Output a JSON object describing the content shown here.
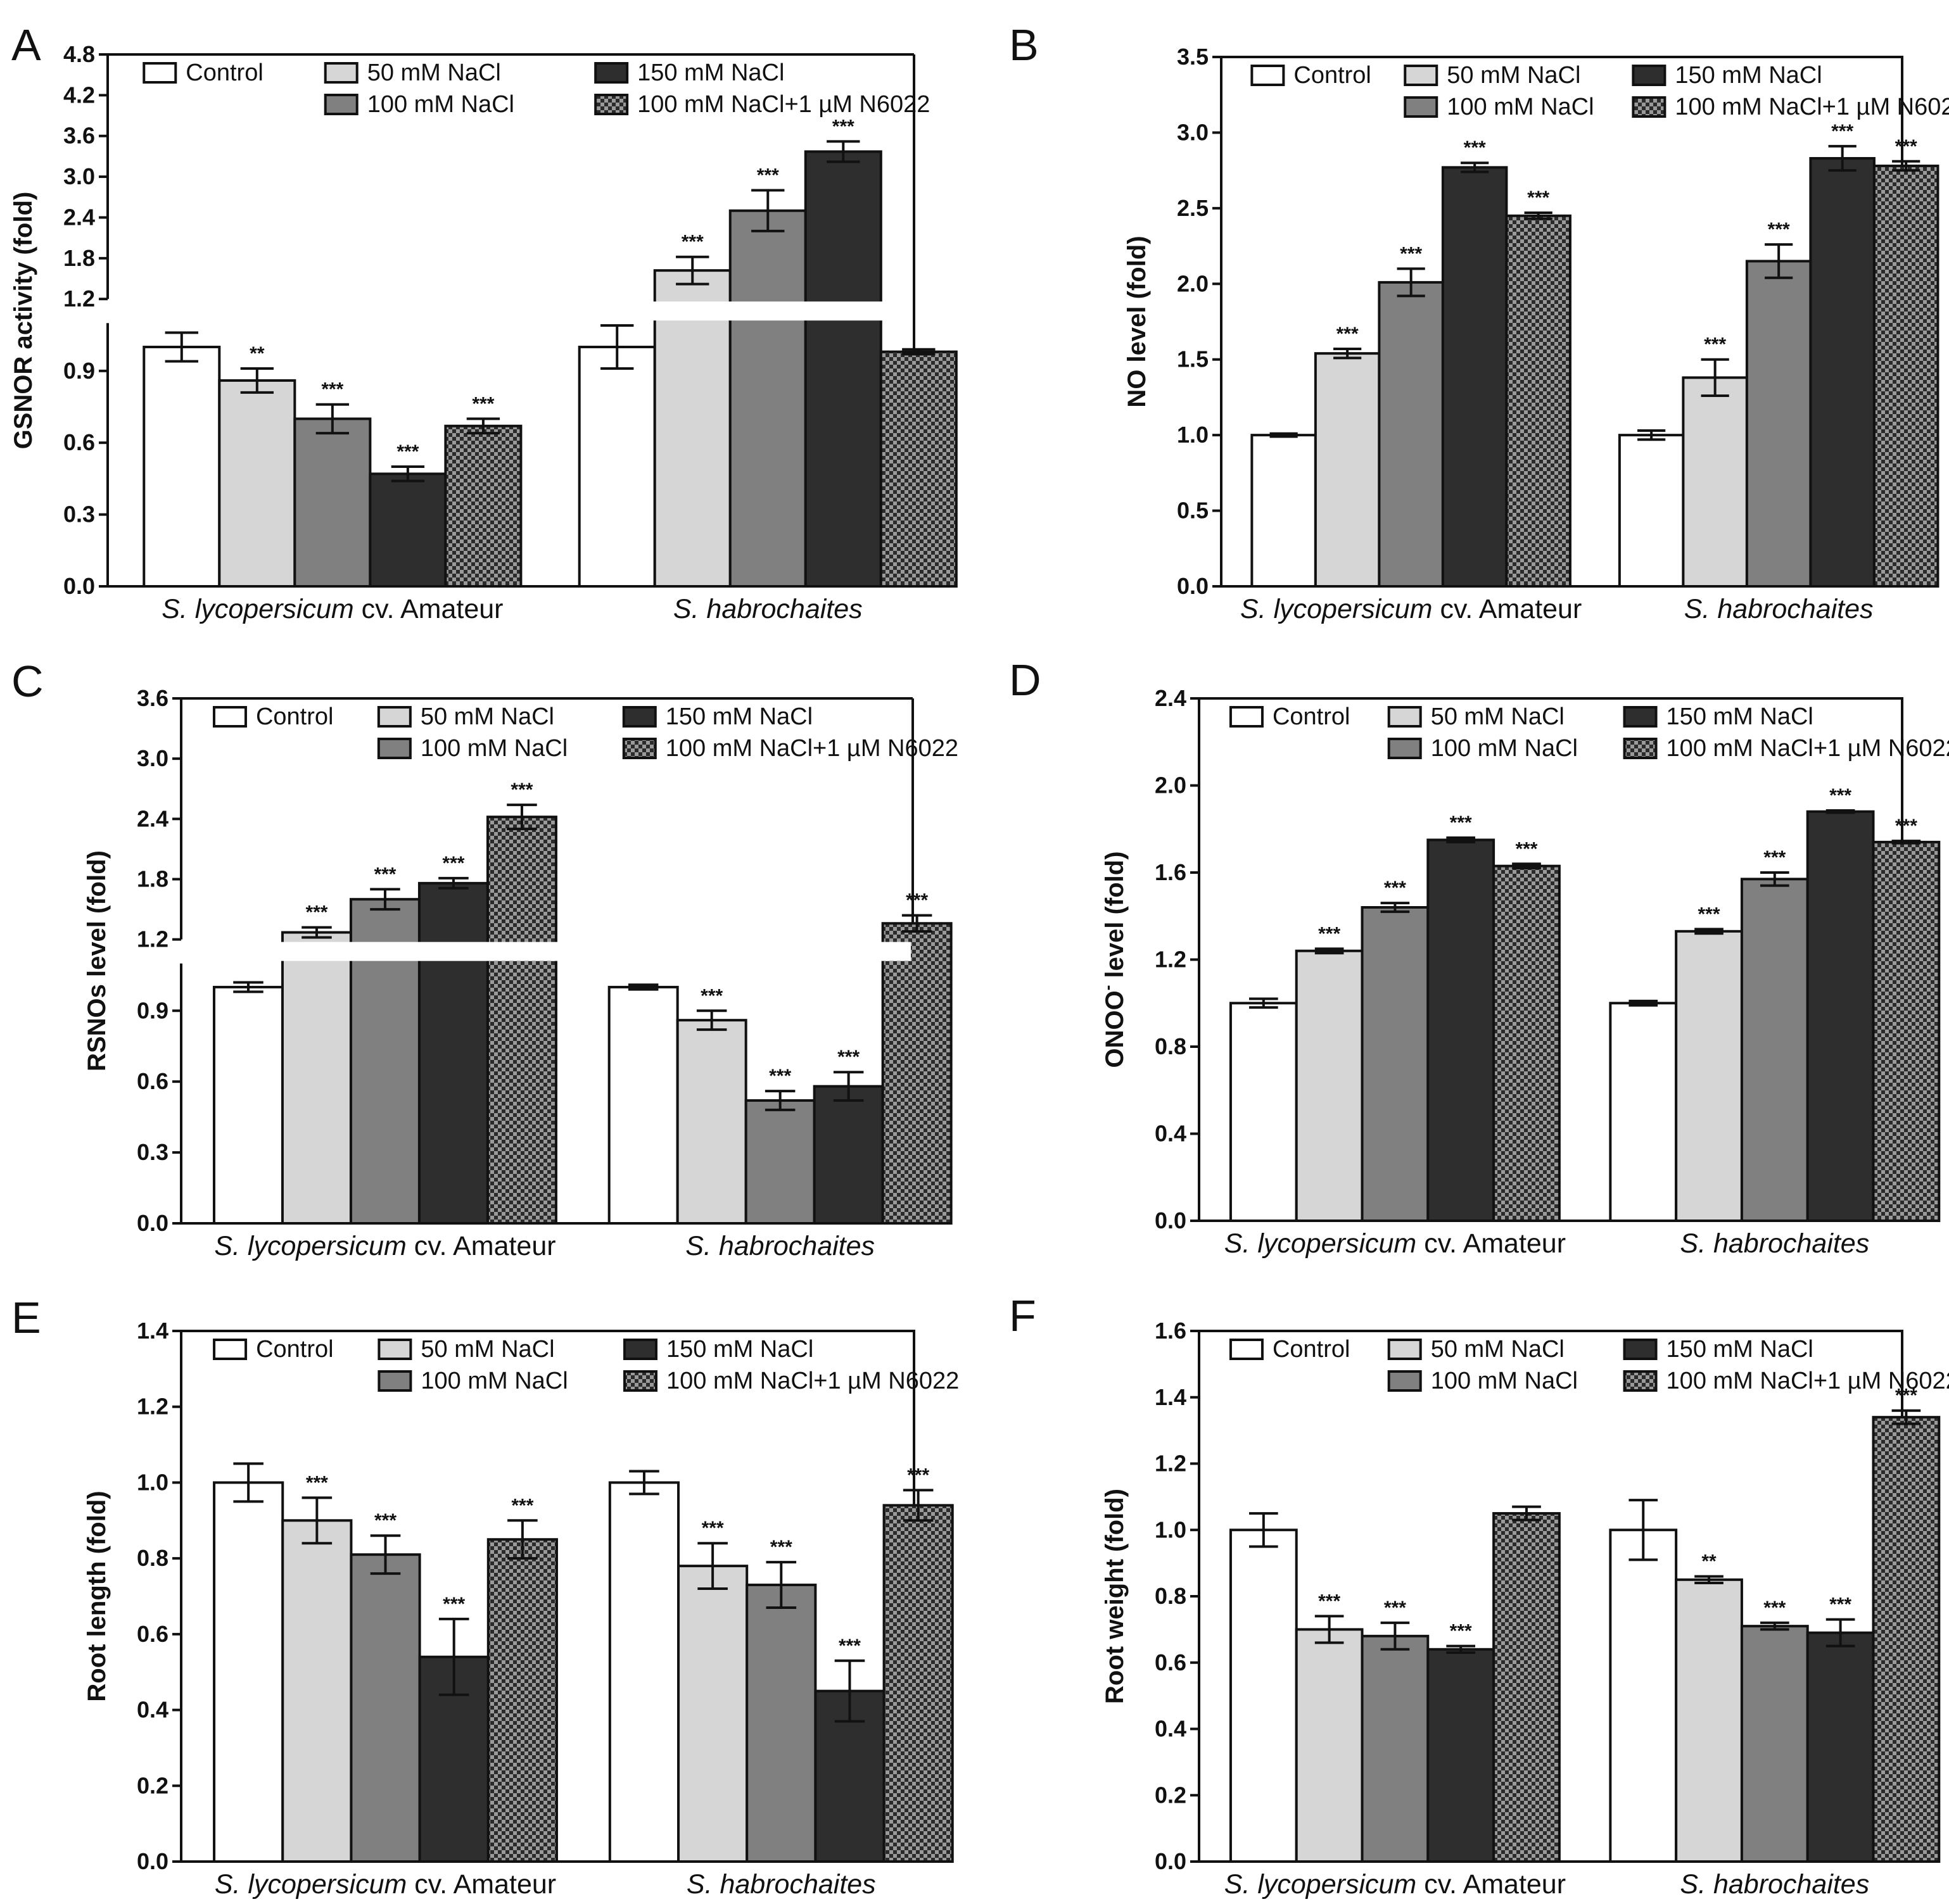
{
  "figure": {
    "categories": [
      {
        "italic": "S. lycopersicum",
        "plain": " cv. Amateur"
      },
      {
        "italic": "S. habrochaites",
        "plain": ""
      }
    ],
    "legend": [
      "Control",
      "50 mM NaCl",
      "150 mM NaCl",
      "100 mM NaCl",
      "100 mM NaCl+1  µM N6022"
    ],
    "colors": {
      "control": "#ffffff",
      "nacl_50": "#d6d6d6",
      "nacl_100": "#808080",
      "nacl_150": "#2e2e2e",
      "n6022_check_dark": "#2b2b2b",
      "n6022_check_light": "#9a9a9a",
      "axis": "#111111"
    }
  },
  "chart_data": [
    {
      "panel": "A",
      "type": "bar",
      "ylabel": "GSNOR activity (fold)",
      "axis_break": true,
      "ylim_lower": [
        0,
        1.1
      ],
      "ylim_upper": [
        1.2,
        4.8
      ],
      "yticks_lower": [
        "0.0",
        "0.3",
        "0.6",
        "0.9"
      ],
      "yticks_upper": [
        "1.2",
        "1.8",
        "2.4",
        "3.0",
        "3.6",
        "4.2",
        "4.8"
      ],
      "series": [
        {
          "name": "Control",
          "values": [
            1.0,
            1.0
          ],
          "errors": [
            0.06,
            0.09
          ],
          "labels": [
            "",
            ""
          ]
        },
        {
          "name": "50 mM NaCl",
          "values": [
            0.86,
            1.62
          ],
          "errors": [
            0.05,
            0.2
          ],
          "labels": [
            "**",
            "***"
          ]
        },
        {
          "name": "100 mM NaCl",
          "values": [
            0.7,
            2.5
          ],
          "errors": [
            0.06,
            0.3
          ],
          "labels": [
            "***",
            "***"
          ]
        },
        {
          "name": "150 mM NaCl",
          "values": [
            0.47,
            3.37
          ],
          "errors": [
            0.03,
            0.15
          ],
          "labels": [
            "***",
            "***"
          ]
        },
        {
          "name": "100 mM NaCl+1 µM N6022",
          "values": [
            0.67,
            0.98
          ],
          "errors": [
            0.03,
            0.01
          ],
          "labels": [
            "***",
            ""
          ]
        }
      ]
    },
    {
      "panel": "B",
      "type": "bar",
      "ylabel": "NO level (fold)",
      "ylim": [
        0,
        3.5
      ],
      "yticks": [
        "0.0",
        "0.5",
        "1.0",
        "1.5",
        "2.0",
        "2.5",
        "3.0",
        "3.5"
      ],
      "series": [
        {
          "name": "Control",
          "values": [
            1.0,
            1.0
          ],
          "errors": [
            0.01,
            0.03
          ],
          "labels": [
            "",
            ""
          ]
        },
        {
          "name": "50 mM NaCl",
          "values": [
            1.54,
            1.38
          ],
          "errors": [
            0.03,
            0.12
          ],
          "labels": [
            "***",
            "***"
          ]
        },
        {
          "name": "100 mM NaCl",
          "values": [
            2.01,
            2.15
          ],
          "errors": [
            0.09,
            0.11
          ],
          "labels": [
            "***",
            "***"
          ]
        },
        {
          "name": "150 mM NaCl",
          "values": [
            2.77,
            2.83
          ],
          "errors": [
            0.03,
            0.08
          ],
          "labels": [
            "***",
            "***"
          ]
        },
        {
          "name": "100 mM NaCl+1 µM N6022",
          "values": [
            2.45,
            2.78
          ],
          "errors": [
            0.02,
            0.03
          ],
          "labels": [
            "***",
            "***"
          ]
        }
      ]
    },
    {
      "panel": "C",
      "type": "bar",
      "ylabel": "RSNOs level (fold)",
      "axis_break": true,
      "ylim_lower": [
        0,
        1.1
      ],
      "ylim_upper": [
        1.2,
        3.6
      ],
      "yticks_lower": [
        "0.0",
        "0.3",
        "0.6",
        "0.9"
      ],
      "yticks_upper": [
        "1.2",
        "1.8",
        "2.4",
        "3.0",
        "3.6"
      ],
      "series": [
        {
          "name": "Control",
          "values": [
            1.0,
            1.0
          ],
          "errors": [
            0.02,
            0.01
          ],
          "labels": [
            "",
            ""
          ]
        },
        {
          "name": "50 mM NaCl",
          "values": [
            1.27,
            0.86
          ],
          "errors": [
            0.05,
            0.04
          ],
          "labels": [
            "***",
            "***"
          ]
        },
        {
          "name": "100 mM NaCl",
          "values": [
            1.6,
            0.52
          ],
          "errors": [
            0.1,
            0.04
          ],
          "labels": [
            "***",
            "***"
          ]
        },
        {
          "name": "150 mM NaCl",
          "values": [
            1.76,
            0.58
          ],
          "errors": [
            0.05,
            0.06
          ],
          "labels": [
            "***",
            "***"
          ]
        },
        {
          "name": "100 mM NaCl+1 µM N6022",
          "values": [
            2.42,
            1.36
          ],
          "errors": [
            0.12,
            0.08
          ],
          "labels": [
            "***",
            "***"
          ]
        }
      ]
    },
    {
      "panel": "D",
      "type": "bar",
      "ylabel": "ONOO",
      "ylabel_sup": "-",
      "ylabel_rest": " level (fold)",
      "ylim": [
        0,
        2.4
      ],
      "yticks": [
        "0.0",
        "0.4",
        "0.8",
        "1.2",
        "1.6",
        "2.0",
        "2.4"
      ],
      "series": [
        {
          "name": "Control",
          "values": [
            1.0,
            1.0
          ],
          "errors": [
            0.02,
            0.01
          ],
          "labels": [
            "",
            ""
          ]
        },
        {
          "name": "50 mM NaCl",
          "values": [
            1.24,
            1.33
          ],
          "errors": [
            0.01,
            0.01
          ],
          "labels": [
            "***",
            "***"
          ]
        },
        {
          "name": "100 mM NaCl",
          "values": [
            1.44,
            1.57
          ],
          "errors": [
            0.02,
            0.03
          ],
          "labels": [
            "***",
            "***"
          ]
        },
        {
          "name": "150 mM NaCl",
          "values": [
            1.75,
            1.88
          ],
          "errors": [
            0.01,
            0.005
          ],
          "labels": [
            "***",
            "***"
          ]
        },
        {
          "name": "100 mM NaCl+1 µM N6022",
          "values": [
            1.63,
            1.74
          ],
          "errors": [
            0.01,
            0.005
          ],
          "labels": [
            "***",
            "***"
          ]
        }
      ]
    },
    {
      "panel": "E",
      "type": "bar",
      "ylabel": "Root length (fold)",
      "ylim": [
        0,
        1.4
      ],
      "yticks": [
        "0.0",
        "0.2",
        "0.4",
        "0.6",
        "0.8",
        "1.0",
        "1.2",
        "1.4"
      ],
      "series": [
        {
          "name": "Control",
          "values": [
            1.0,
            1.0
          ],
          "errors": [
            0.05,
            0.03
          ],
          "labels": [
            "",
            ""
          ]
        },
        {
          "name": "50 mM NaCl",
          "values": [
            0.9,
            0.78
          ],
          "errors": [
            0.06,
            0.06
          ],
          "labels": [
            "***",
            "***"
          ]
        },
        {
          "name": "100 mM NaCl",
          "values": [
            0.81,
            0.73
          ],
          "errors": [
            0.05,
            0.06
          ],
          "labels": [
            "***",
            "***"
          ]
        },
        {
          "name": "150 mM NaCl",
          "values": [
            0.54,
            0.45
          ],
          "errors": [
            0.1,
            0.08
          ],
          "labels": [
            "***",
            "***"
          ]
        },
        {
          "name": "100 mM NaCl+1 µM N6022",
          "values": [
            0.85,
            0.94
          ],
          "errors": [
            0.05,
            0.04
          ],
          "labels": [
            "***",
            "***"
          ]
        }
      ]
    },
    {
      "panel": "F",
      "type": "bar",
      "ylabel": "Root weight (fold)",
      "ylim": [
        0,
        1.6
      ],
      "yticks": [
        "0.0",
        "0.2",
        "0.4",
        "0.6",
        "0.8",
        "1.0",
        "1.2",
        "1.4",
        "1.6"
      ],
      "series": [
        {
          "name": "Control",
          "values": [
            1.0,
            1.0
          ],
          "errors": [
            0.05,
            0.09
          ],
          "labels": [
            "",
            ""
          ]
        },
        {
          "name": "50 mM NaCl",
          "values": [
            0.7,
            0.85
          ],
          "errors": [
            0.04,
            0.01
          ],
          "labels": [
            "***",
            "**"
          ]
        },
        {
          "name": "100 mM NaCl",
          "values": [
            0.68,
            0.71
          ],
          "errors": [
            0.04,
            0.01
          ],
          "labels": [
            "***",
            "***"
          ]
        },
        {
          "name": "150 mM NaCl",
          "values": [
            0.64,
            0.69
          ],
          "errors": [
            0.01,
            0.04
          ],
          "labels": [
            "***",
            "***"
          ]
        },
        {
          "name": "100 mM NaCl+1 µM N6022",
          "values": [
            1.05,
            1.34
          ],
          "errors": [
            0.02,
            0.02
          ],
          "labels": [
            "",
            "***"
          ]
        }
      ]
    }
  ]
}
